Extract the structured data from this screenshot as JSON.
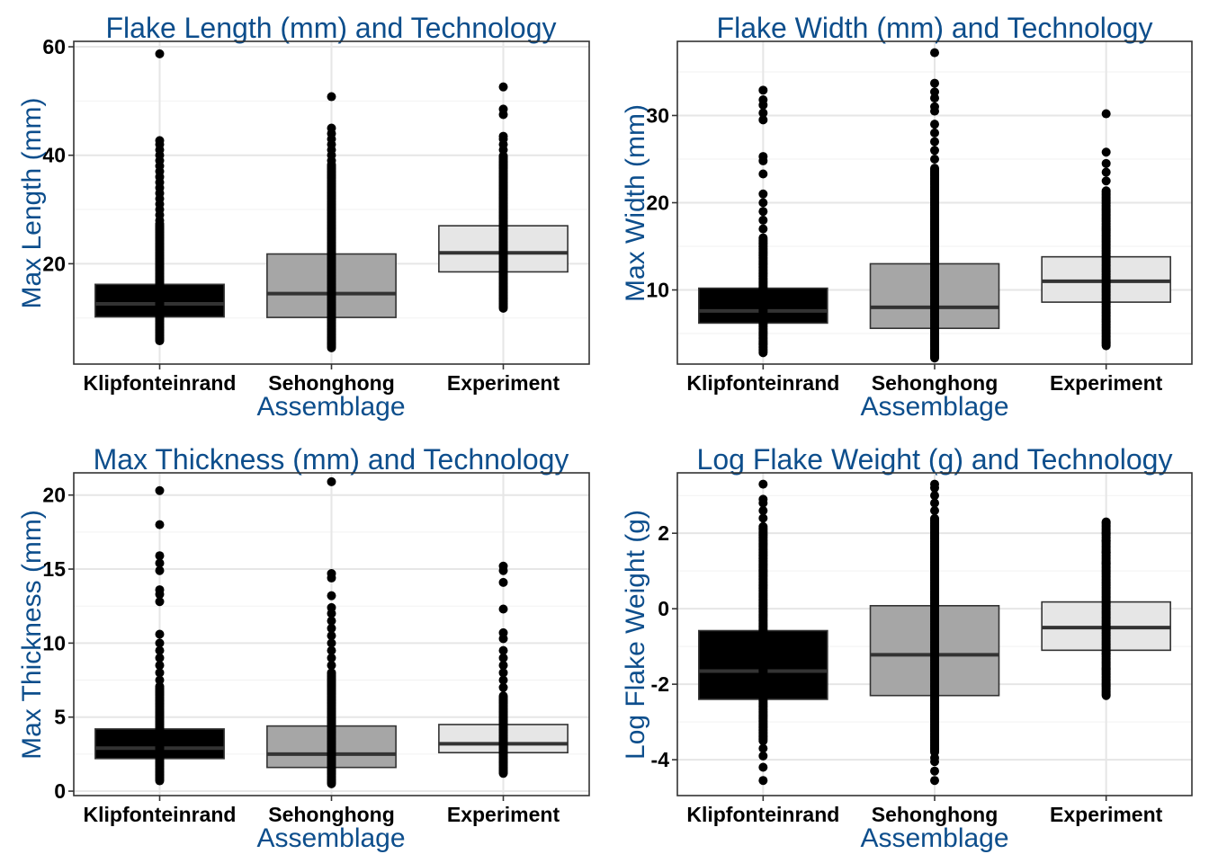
{
  "chart_data": [
    {
      "type": "box",
      "title": "Flake Length (mm) and Technology",
      "xlabel": "Assemblage",
      "ylabel": "Max Length (mm)",
      "categories": [
        "Klipfonteinrand",
        "Sehonghong",
        "Experiment"
      ],
      "ylim": [
        1.5,
        61
      ],
      "yticks": [
        20,
        40,
        60
      ],
      "grid": true,
      "boxes": [
        {
          "category": "Klipfonteinrand",
          "q1": 10.2,
          "median": 12.6,
          "q3": 16.2,
          "fill": "#000000",
          "whisker_low": 6.0,
          "whisker_high": 27.5,
          "outliers": [
            5.8,
            28,
            29,
            30,
            31,
            32,
            33,
            34,
            35,
            36,
            37,
            38,
            39,
            40,
            41,
            42,
            42.7,
            58.7
          ]
        },
        {
          "category": "Sehonghong",
          "q1": 10.1,
          "median": 14.5,
          "q3": 21.8,
          "fill": "#a6a6a6",
          "whisker_low": 4.5,
          "whisker_high": 38.5,
          "outliers": [
            39,
            40,
            41,
            42,
            43,
            44,
            45,
            50.8
          ]
        },
        {
          "category": "Experiment",
          "q1": 18.5,
          "median": 22.0,
          "q3": 27.0,
          "fill": "#e6e6e6",
          "whisker_low": 11.8,
          "whisker_high": 40.0,
          "outliers": [
            41,
            42,
            43,
            43.5,
            47.5,
            48.5,
            52.6
          ]
        }
      ]
    },
    {
      "type": "box",
      "title": "Flake Width (mm) and Technology",
      "xlabel": "Assemblage",
      "ylabel": "Max Width (mm)",
      "categories": [
        "Klipfonteinrand",
        "Sehonghong",
        "Experiment"
      ],
      "ylim": [
        1.5,
        38.5
      ],
      "yticks": [
        10,
        20,
        30
      ],
      "grid": true,
      "boxes": [
        {
          "category": "Klipfonteinrand",
          "q1": 6.2,
          "median": 7.6,
          "q3": 10.2,
          "fill": "#000000",
          "whisker_low": 2.8,
          "whisker_high": 16.0,
          "outliers": [
            17,
            18,
            19,
            20,
            21,
            23.3,
            24.8,
            25.3,
            29.5,
            30.3,
            31.2,
            31.8,
            32.9
          ]
        },
        {
          "category": "Sehonghong",
          "q1": 5.6,
          "median": 8.0,
          "q3": 13.0,
          "fill": "#a6a6a6",
          "whisker_low": 2.2,
          "whisker_high": 24.0,
          "outliers": [
            25,
            26,
            27,
            28,
            29,
            30.5,
            31,
            32,
            32.7,
            33.7,
            37.2
          ]
        },
        {
          "category": "Experiment",
          "q1": 8.6,
          "median": 11.0,
          "q3": 13.8,
          "fill": "#e6e6e6",
          "whisker_low": 3.6,
          "whisker_high": 21.5,
          "outliers": [
            22.5,
            23.5,
            24.5,
            25.8,
            30.2
          ]
        }
      ]
    },
    {
      "type": "box",
      "title": "Max Thickness (mm) and Technology",
      "xlabel": "Assemblage",
      "ylabel": "Max Thickness (mm)",
      "categories": [
        "Klipfonteinrand",
        "Sehonghong",
        "Experiment"
      ],
      "ylim": [
        -0.3,
        21.5
      ],
      "yticks": [
        0,
        5,
        10,
        15,
        20
      ],
      "grid": true,
      "boxes": [
        {
          "category": "Klipfonteinrand",
          "q1": 2.2,
          "median": 2.9,
          "q3": 4.2,
          "fill": "#000000",
          "whisker_low": 0.7,
          "whisker_high": 7.1,
          "outliers": [
            7.5,
            8,
            8.5,
            9,
            9.5,
            10,
            10.6,
            12.8,
            13.3,
            13.6,
            14.9,
            15.4,
            15.9,
            18.0,
            20.3
          ]
        },
        {
          "category": "Sehonghong",
          "q1": 1.6,
          "median": 2.5,
          "q3": 4.4,
          "fill": "#a6a6a6",
          "whisker_low": 0.5,
          "whisker_high": 8.0,
          "outliers": [
            8.5,
            9,
            9.5,
            10,
            10.5,
            11,
            11.5,
            12,
            12.4,
            13.2,
            14.4,
            14.7,
            20.9
          ]
        },
        {
          "category": "Experiment",
          "q1": 2.6,
          "median": 3.2,
          "q3": 4.5,
          "fill": "#e6e6e6",
          "whisker_low": 1.2,
          "whisker_high": 6.5,
          "outliers": [
            7,
            7.5,
            8,
            8.5,
            9,
            9.5,
            10.3,
            10.7,
            12.3,
            14.1,
            14.9,
            15.2
          ]
        }
      ]
    },
    {
      "type": "box",
      "title": "Log Flake Weight (g) and Technology",
      "xlabel": "Assemblage",
      "ylabel": "Log Flake Weight (g)",
      "categories": [
        "Klipfonteinrand",
        "Sehonghong",
        "Experiment"
      ],
      "ylim": [
        -4.95,
        3.6
      ],
      "yticks": [
        -4,
        -2,
        0,
        2
      ],
      "grid": true,
      "boxes": [
        {
          "category": "Klipfonteinrand",
          "q1": -2.4,
          "median": -1.65,
          "q3": -0.58,
          "fill": "#000000",
          "whisker_low": -3.5,
          "whisker_high": 2.2,
          "outliers": [
            -4.55,
            -4.2,
            -3.9,
            -3.7,
            2.4,
            2.6,
            2.8,
            2.9,
            3.3
          ]
        },
        {
          "category": "Sehonghong",
          "q1": -2.3,
          "median": -1.22,
          "q3": 0.08,
          "fill": "#a6a6a6",
          "whisker_low": -3.8,
          "whisker_high": 2.4,
          "outliers": [
            -4.55,
            -4.3,
            -4.05,
            -3.95,
            2.6,
            2.8,
            3.0,
            3.2,
            3.3
          ]
        },
        {
          "category": "Experiment",
          "q1": -1.1,
          "median": -0.5,
          "q3": 0.18,
          "fill": "#e6e6e6",
          "whisker_low": -2.3,
          "whisker_high": 2.3,
          "outliers": [
            -1.6,
            -1.2,
            1.2,
            1.5,
            1.8,
            2.0,
            2.3
          ]
        }
      ]
    }
  ]
}
